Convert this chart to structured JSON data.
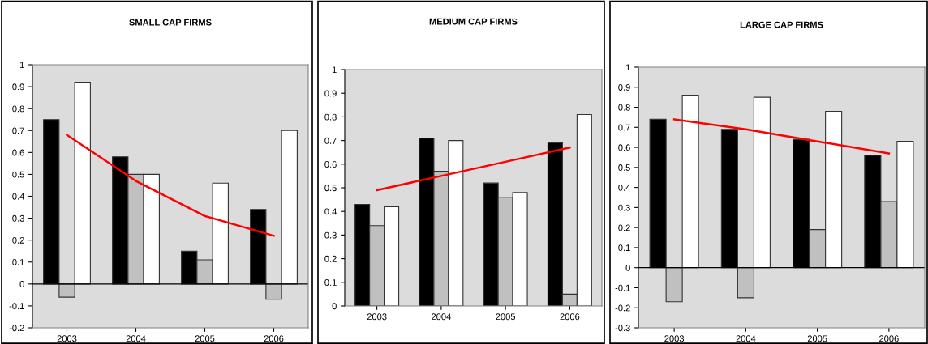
{
  "chart_data": [
    {
      "type": "bar",
      "title": "SMALL CAP FIRMS",
      "categories": [
        "2003",
        "2004",
        "2005",
        "2006"
      ],
      "ylim": [
        -0.2,
        1
      ],
      "yticks": [
        -0.2,
        -0.1,
        0,
        0.1,
        0.2,
        0.3,
        0.4,
        0.5,
        0.6,
        0.7,
        0.8,
        0.9,
        1
      ],
      "grid": false,
      "ref_lines": [
        {
          "axis": "y",
          "value": 0,
          "color": "#000000"
        }
      ],
      "legend": false,
      "series": [
        {
          "color": "#000000",
          "values": [
            0.75,
            0.58,
            0.15,
            0.34
          ]
        },
        {
          "color": "#c0c0c0",
          "values": [
            -0.06,
            0.5,
            0.11,
            -0.07
          ]
        },
        {
          "color": "#ffffff",
          "values": [
            0.92,
            0.5,
            0.46,
            0.7
          ]
        },
        {
          "type": "line",
          "color": "#ff0000",
          "marker": "none",
          "values": [
            0.68,
            0.47,
            0.31,
            0.22
          ]
        }
      ]
    },
    {
      "type": "bar",
      "title": "MEDIUM CAP FIRMS",
      "categories": [
        "2003",
        "2004",
        "2005",
        "2006"
      ],
      "ylim": [
        0,
        1
      ],
      "yticks": [
        0,
        0.1,
        0.2,
        0.3,
        0.4,
        0.5,
        0.6,
        0.7,
        0.8,
        0.9,
        1
      ],
      "grid": false,
      "legend": false,
      "series": [
        {
          "color": "#000000",
          "values": [
            0.43,
            0.71,
            0.52,
            0.69
          ]
        },
        {
          "color": "#c0c0c0",
          "values": [
            0.34,
            0.57,
            0.46,
            0.05
          ]
        },
        {
          "color": "#ffffff",
          "values": [
            0.42,
            0.7,
            0.48,
            0.81
          ]
        },
        {
          "type": "line",
          "color": "#ff0000",
          "marker": "none",
          "values": [
            0.49,
            0.55,
            0.61,
            0.67
          ]
        }
      ]
    },
    {
      "type": "bar",
      "title": "LARGE CAP FIRMS",
      "categories": [
        "2003",
        "2004",
        "2005",
        "2006"
      ],
      "ylim": [
        -0.3,
        1
      ],
      "yticks": [
        -0.3,
        -0.2,
        -0.1,
        0,
        0.1,
        0.2,
        0.3,
        0.4,
        0.5,
        0.6,
        0.7,
        0.8,
        0.9,
        1
      ],
      "grid": false,
      "ref_lines": [
        {
          "axis": "y",
          "value": 0,
          "color": "#000000"
        }
      ],
      "legend": false,
      "series": [
        {
          "color": "#000000",
          "values": [
            0.74,
            0.69,
            0.64,
            0.56
          ]
        },
        {
          "color": "#c0c0c0",
          "values": [
            -0.17,
            -0.15,
            0.19,
            0.33
          ]
        },
        {
          "color": "#ffffff",
          "values": [
            0.86,
            0.85,
            0.78,
            0.63
          ]
        },
        {
          "type": "line",
          "color": "#ff0000",
          "marker": "none",
          "values": [
            0.74,
            0.69,
            0.63,
            0.57
          ]
        }
      ]
    }
  ]
}
